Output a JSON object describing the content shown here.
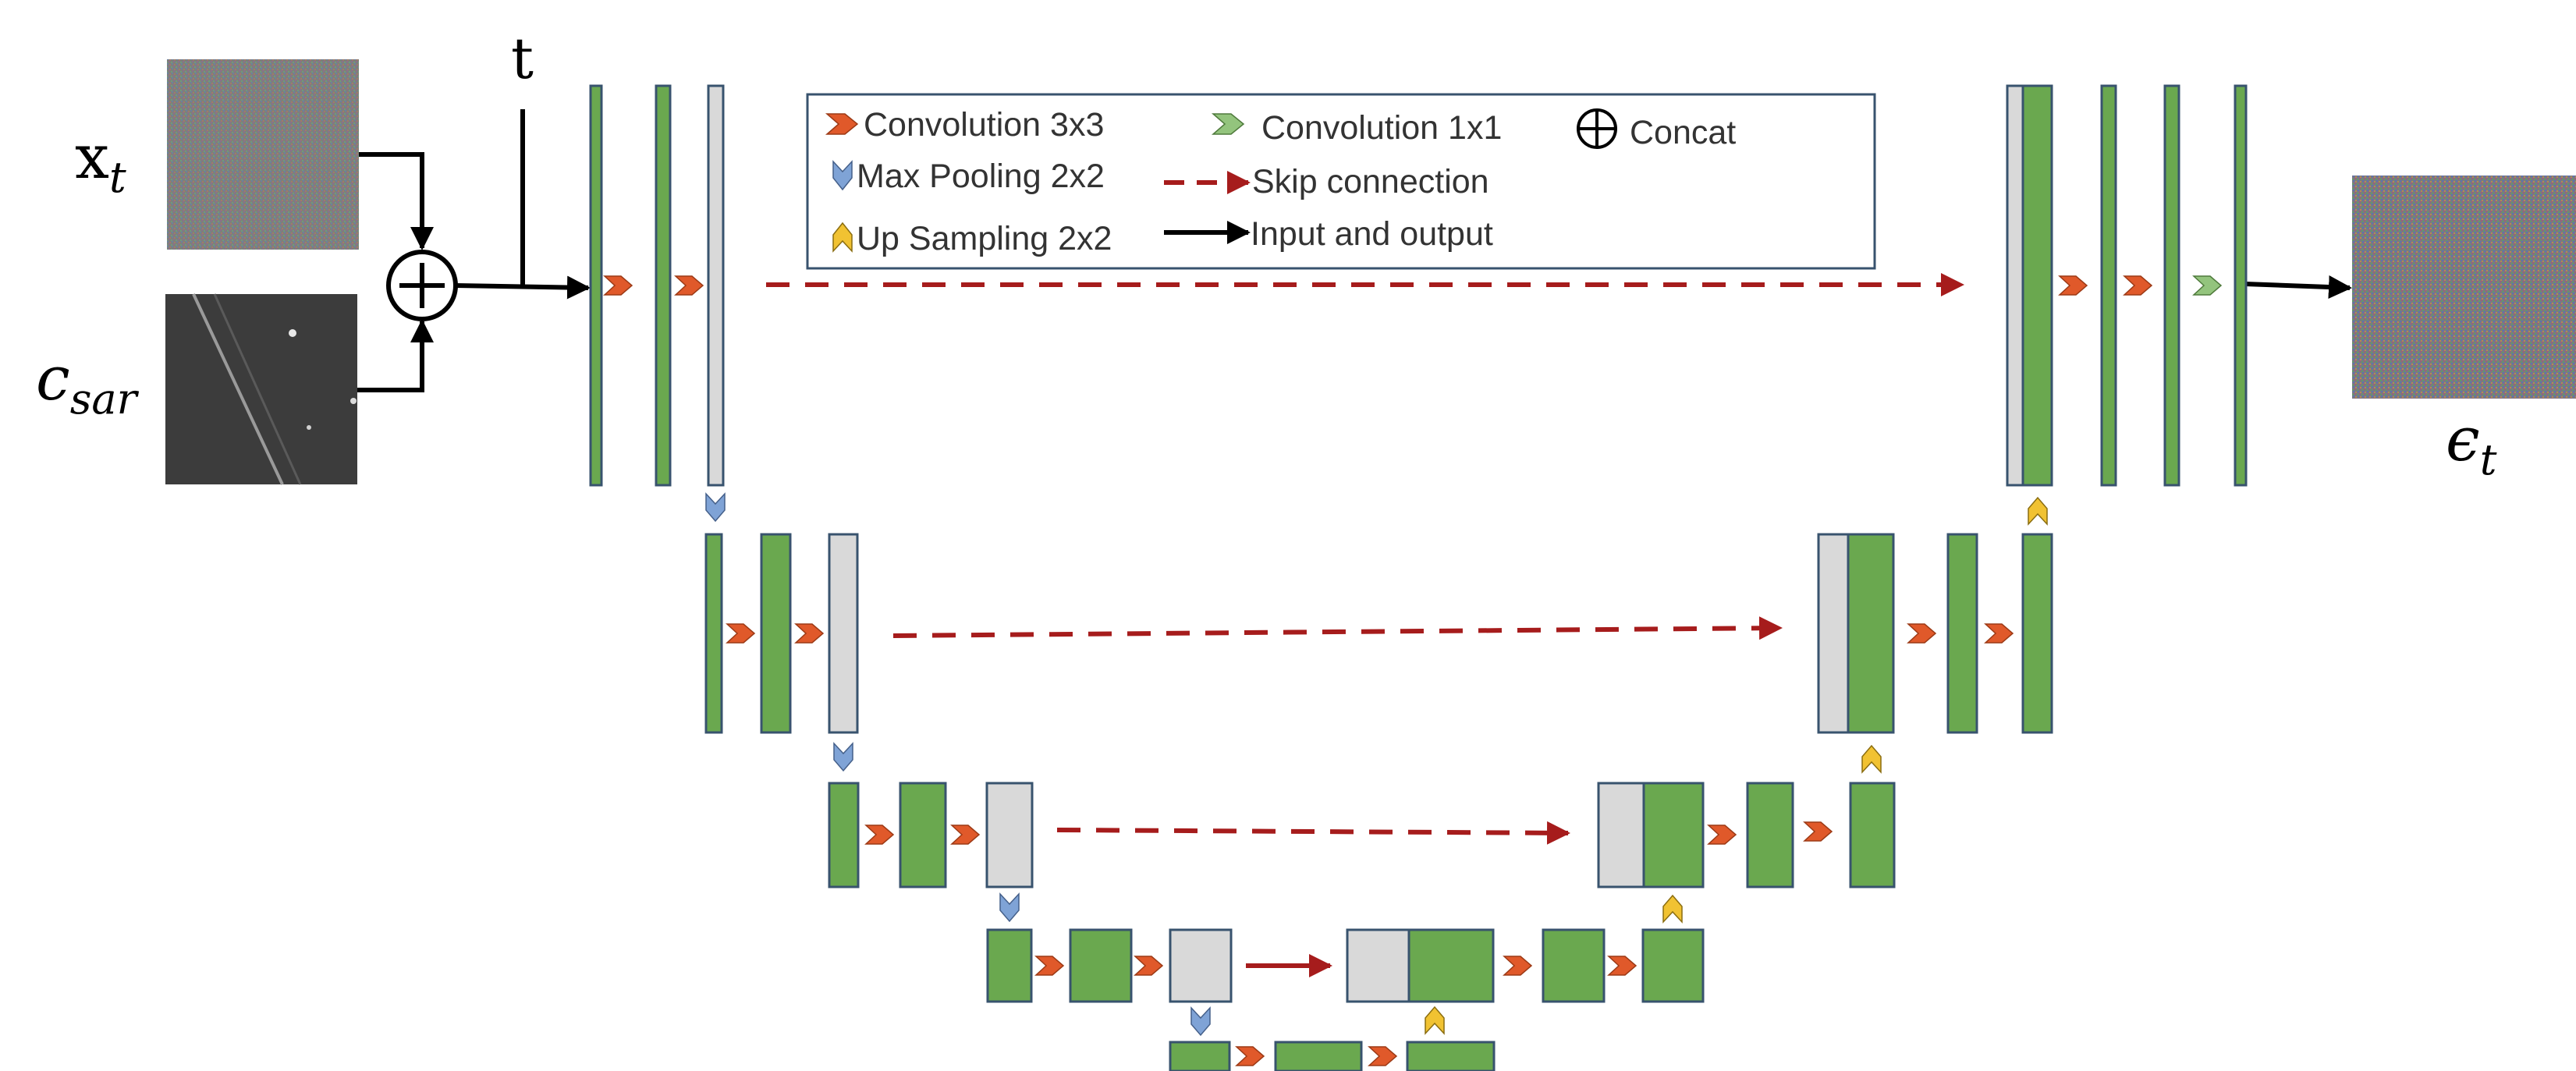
{
  "labels": {
    "x_t_base": "x",
    "x_t_sub": "t",
    "t": "t",
    "c_sar_base": "c",
    "c_sar_sub": "sar",
    "eps_base": "ϵ",
    "eps_sub": "t"
  },
  "legend": {
    "conv3": "Convolution 3x3",
    "conv1": "Convolution 1x1",
    "concat": "Concat",
    "maxpool": "Max Pooling 2x2",
    "skip": "Skip connection",
    "upsample": "Up Sampling 2x2",
    "io": "Input and output"
  },
  "colors": {
    "block_green": "#6aa84f",
    "block_gray": "#d9d9d9",
    "block_border": "#38536e",
    "conv3_arrow": "#e0592a",
    "conv1_arrow": "#93c47d",
    "pool_arrow": "#7fa3d6",
    "up_arrow": "#f1c232",
    "skip_line": "#a61c1c"
  },
  "icons": [
    "concat-circle-icon",
    "conv3x3-chevron-icon",
    "conv1x1-chevron-icon",
    "maxpool-chevron-icon",
    "upsample-chevron-icon"
  ]
}
